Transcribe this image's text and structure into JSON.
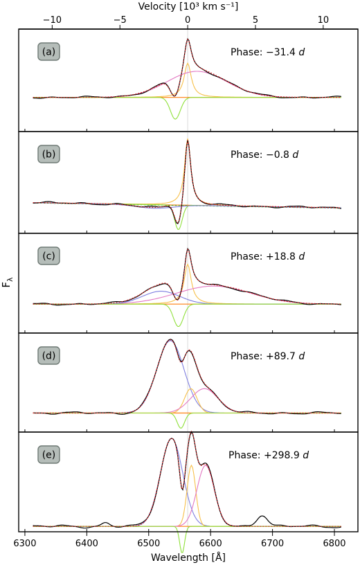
{
  "chart_data": {
    "type": "line",
    "xlabel": "Wavelength [Å]",
    "x_ticks": [
      6300,
      6400,
      6500,
      6600,
      6700,
      6800
    ],
    "xlim": [
      6290,
      6838
    ],
    "top_xlabel": "Velocity [10³ km s⁻¹]",
    "top_ticks": [
      {
        "label": "−10",
        "velocity": -10
      },
      {
        "label": "−5",
        "velocity": -5
      },
      {
        "label": "0",
        "velocity": 0
      },
      {
        "label": "5",
        "velocity": 5
      },
      {
        "label": "10",
        "velocity": 10
      }
    ],
    "rest_wavelength": 6563,
    "ylabel": "F_λ",
    "colors": {
      "observed": "#000000",
      "fit": "#d62728",
      "narrow": "#f7c04a",
      "broad": "#e377c2",
      "absorption": "#8fe03a",
      "blue": "#7f7fe0",
      "continuum_a": "#ff7f0e",
      "continuum_b": "#2ca02c"
    },
    "panels": [
      {
        "label": "(a)",
        "phase_label": "Phase: ",
        "phase_value": "−31.4",
        "phase_unit": "d",
        "ylim": [
          -0.55,
          1.1
        ],
        "continuum": 0,
        "continuum_slope": 0,
        "components": [
          {
            "kind": "narrow",
            "amp": 0.55,
            "center": 6563,
            "sigma": 7,
            "shape": "lorentz"
          },
          {
            "kind": "broad",
            "amp": 0.42,
            "center": 6578,
            "sigma": 48,
            "shape": "gauss"
          },
          {
            "kind": "absorption",
            "amp": -0.35,
            "center": 6543,
            "sigma": 8,
            "shape": "gauss"
          }
        ]
      },
      {
        "label": "(b)",
        "phase_label": "Phase: ",
        "phase_value": "−0.8",
        "phase_unit": "d",
        "ylim": [
          -0.35,
          1.1
        ],
        "continuum": 0.05,
        "continuum_slope": -0.00015,
        "components": [
          {
            "kind": "narrow",
            "amp": 0.95,
            "center": 6563,
            "sigma": 6,
            "shape": "lorentz"
          },
          {
            "kind": "absorption",
            "amp": -0.35,
            "center": 6548,
            "sigma": 6,
            "shape": "gauss"
          },
          {
            "kind": "blue",
            "amp": -0.05,
            "center": 6510,
            "sigma": 30,
            "shape": "gauss"
          }
        ]
      },
      {
        "label": "(c)",
        "phase_label": "Phase: ",
        "phase_value": "+18.8",
        "phase_unit": "d",
        "ylim": [
          -0.45,
          1.1
        ],
        "continuum": 0,
        "continuum_slope": 0,
        "components": [
          {
            "kind": "narrow",
            "amp": 0.62,
            "center": 6563,
            "sigma": 7,
            "shape": "lorentz"
          },
          {
            "kind": "broad",
            "amp": 0.28,
            "center": 6605,
            "sigma": 60,
            "shape": "gauss"
          },
          {
            "kind": "blue",
            "amp": 0.2,
            "center": 6520,
            "sigma": 30,
            "shape": "gauss"
          },
          {
            "kind": "absorption",
            "amp": -0.35,
            "center": 6548,
            "sigma": 8,
            "shape": "gauss"
          }
        ]
      },
      {
        "label": "(d)",
        "phase_label": "Phase: ",
        "phase_value": "+89.7",
        "phase_unit": "d",
        "ylim": [
          -0.25,
          1.05
        ],
        "continuum": 0,
        "continuum_slope": 0,
        "components": [
          {
            "kind": "blue",
            "amp": 0.95,
            "center": 6535,
            "sigma": 22,
            "shape": "gauss"
          },
          {
            "kind": "narrow",
            "amp": 0.32,
            "center": 6568,
            "sigma": 10,
            "shape": "gauss"
          },
          {
            "kind": "broad",
            "amp": 0.32,
            "center": 6590,
            "sigma": 22,
            "shape": "gauss"
          },
          {
            "kind": "absorption",
            "amp": -0.2,
            "center": 6552,
            "sigma": 6,
            "shape": "gauss"
          }
        ]
      },
      {
        "label": "(e)",
        "phase_label": "Phase: ",
        "phase_value": "+298.9",
        "phase_unit": "d",
        "ylim": [
          -0.06,
          1.05
        ],
        "continuum": 0,
        "continuum_slope": 0,
        "components": [
          {
            "kind": "blue",
            "amp": 0.98,
            "center": 6537,
            "sigma": 18,
            "shape": "gauss"
          },
          {
            "kind": "narrow",
            "amp": 0.68,
            "center": 6569,
            "sigma": 7,
            "shape": "gauss"
          },
          {
            "kind": "broad",
            "amp": 0.68,
            "center": 6592,
            "sigma": 14,
            "shape": "gauss"
          },
          {
            "kind": "absorption",
            "amp": -0.3,
            "center": 6554,
            "sigma": 4,
            "shape": "gauss"
          }
        ],
        "extra_observed": [
          {
            "amp": 0.13,
            "center": 6683,
            "sigma": 9
          },
          {
            "amp": 0.04,
            "center": 6430,
            "sigma": 6
          }
        ]
      }
    ]
  }
}
